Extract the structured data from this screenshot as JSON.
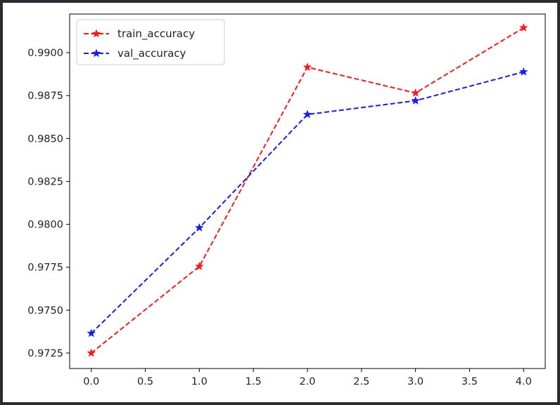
{
  "chart_data": {
    "type": "line",
    "x": [
      0,
      1,
      2,
      3,
      4
    ],
    "series": [
      {
        "name": "train_accuracy",
        "color": "#ff1a1a",
        "values": [
          0.9725,
          0.97755,
          0.98915,
          0.98765,
          0.99145
        ]
      },
      {
        "name": "val_accuracy",
        "color": "#1a1aff",
        "values": [
          0.97365,
          0.9798,
          0.9864,
          0.9872,
          0.98888
        ]
      }
    ],
    "xlim": [
      -0.2,
      4.2
    ],
    "ylim": [
      0.9716,
      0.99225
    ],
    "x_ticks": [
      "0.0",
      "0.5",
      "1.0",
      "1.5",
      "2.0",
      "2.5",
      "3.0",
      "3.5",
      "4.0"
    ],
    "x_tick_values": [
      0,
      0.5,
      1,
      1.5,
      2,
      2.5,
      3,
      3.5,
      4
    ],
    "y_ticks": [
      "0.9725",
      "0.9750",
      "0.9775",
      "0.9800",
      "0.9825",
      "0.9850",
      "0.9875",
      "0.9900"
    ],
    "y_tick_values": [
      0.9725,
      0.975,
      0.9775,
      0.98,
      0.9825,
      0.985,
      0.9875,
      0.99
    ],
    "line_style": "dashed",
    "marker": "star",
    "legend_position": "top-left",
    "grid": false,
    "title": "",
    "xlabel": "",
    "ylabel": ""
  }
}
